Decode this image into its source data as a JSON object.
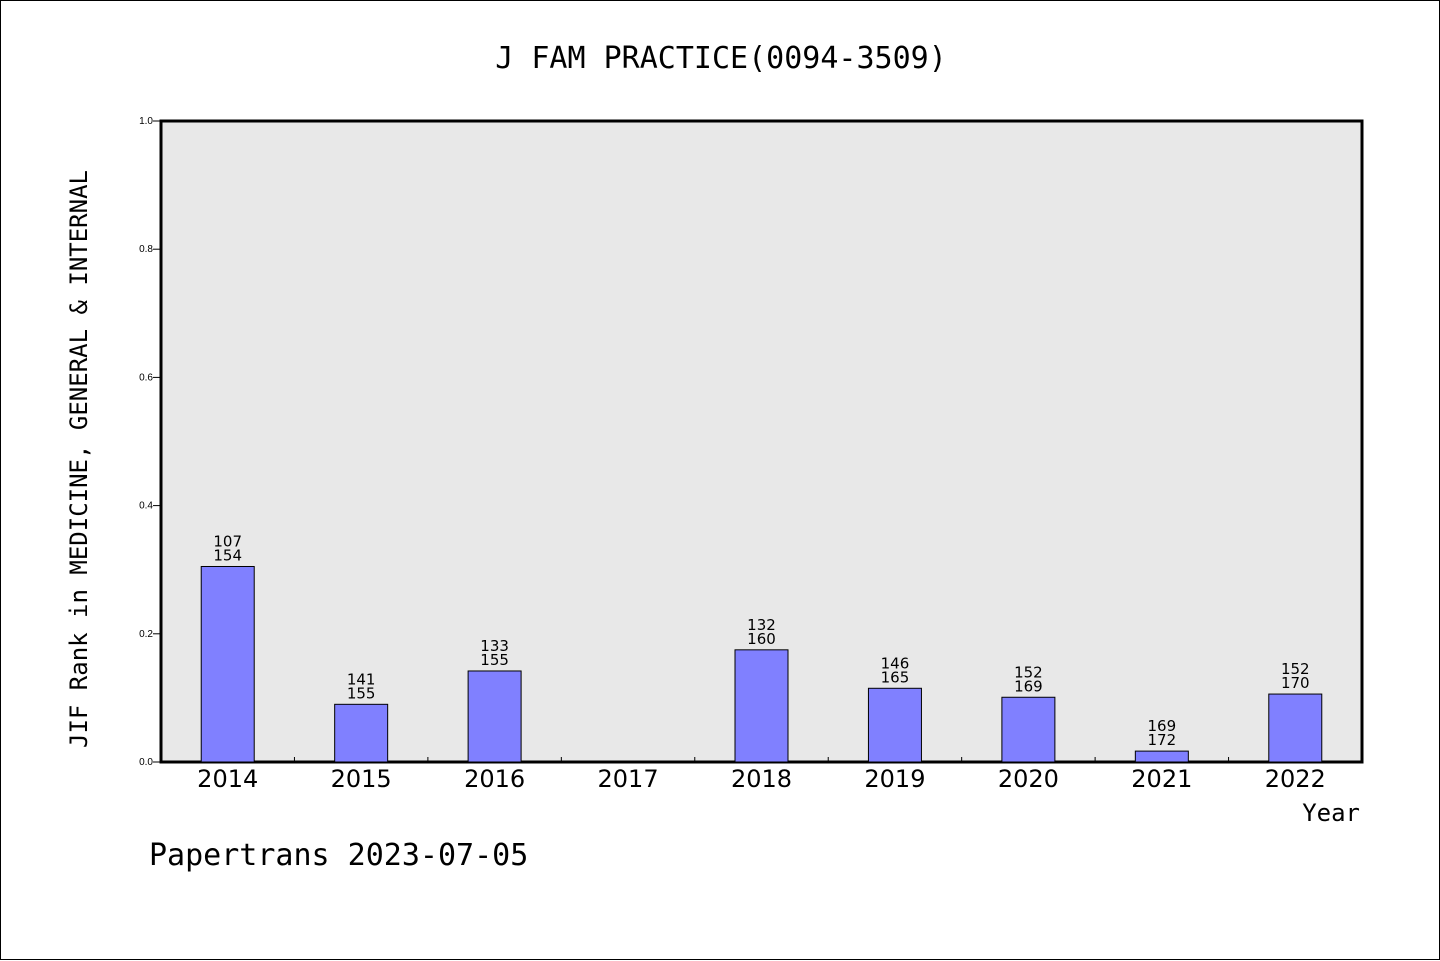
{
  "chart_data": {
    "type": "bar",
    "title": "J FAM PRACTICE(0094-3509)",
    "xlabel": "Year",
    "ylabel": "JIF Rank in MEDICINE, GENERAL & INTERNAL",
    "ylim": [
      0,
      1.0
    ],
    "yticks": [
      "0.0",
      "0.2",
      "0.4",
      "0.6",
      "0.8",
      "1.0"
    ],
    "categories": [
      "2014",
      "2015",
      "2016",
      "2017",
      "2018",
      "2019",
      "2020",
      "2021",
      "2022"
    ],
    "values": [
      0.305,
      0.09,
      0.142,
      null,
      0.175,
      0.115,
      0.101,
      0.017,
      0.106
    ],
    "labels_top": [
      "107",
      "141",
      "133",
      "",
      "132",
      "146",
      "152",
      "169",
      "152"
    ],
    "labels_bottom": [
      "154",
      "155",
      "155",
      "",
      "160",
      "165",
      "169",
      "172",
      "170"
    ],
    "bar_color": "#8080ff",
    "plot_background": "#e8e8e8",
    "grid": false,
    "footer": "Papertrans 2023-07-05"
  }
}
